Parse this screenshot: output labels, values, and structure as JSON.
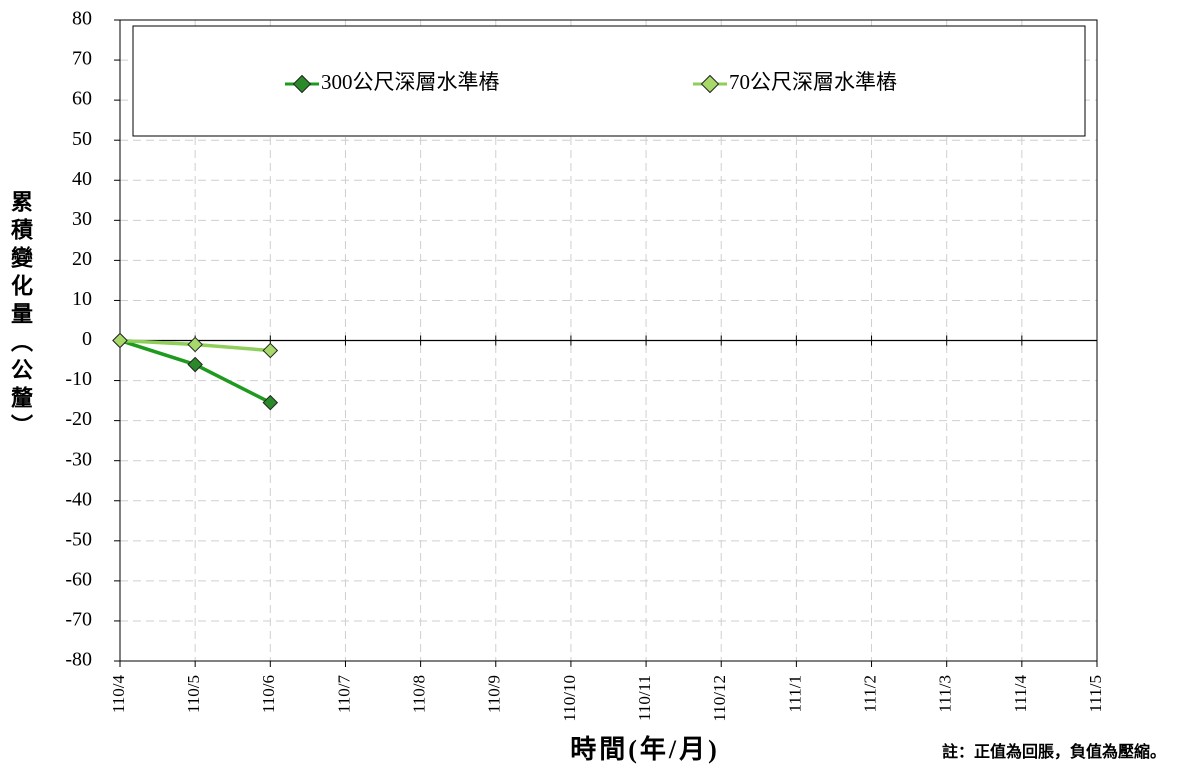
{
  "chart_data": {
    "type": "line",
    "y_label": "累積變化量（公釐）",
    "x_label": "時間(年/月)",
    "note": "註：正值為回脹，負值為壓縮。",
    "categories": [
      "110/4",
      "110/5",
      "110/6",
      "110/7",
      "110/8",
      "110/9",
      "110/10",
      "110/11",
      "110/12",
      "111/1",
      "111/2",
      "111/3",
      "111/4",
      "111/5"
    ],
    "series": [
      {
        "name": "300公尺深層水準樁",
        "color": "#1e9a1e",
        "marker_color": "#2a8a2a",
        "values": [
          0,
          -6,
          -15.5,
          null,
          null,
          null,
          null,
          null,
          null,
          null,
          null,
          null,
          null,
          null
        ]
      },
      {
        "name": "70公尺深層水準樁",
        "color": "#8fce5a",
        "marker_color": "#a6d96a",
        "values": [
          0,
          -1,
          -2.5,
          null,
          null,
          null,
          null,
          null,
          null,
          null,
          null,
          null,
          null,
          null
        ]
      }
    ],
    "ylim": [
      -80,
      80
    ],
    "yticks": [
      -80,
      -70,
      -60,
      -50,
      -40,
      -30,
      -20,
      -10,
      0,
      10,
      20,
      30,
      40,
      50,
      60,
      70,
      80
    ],
    "grid": true,
    "legend": "top"
  }
}
